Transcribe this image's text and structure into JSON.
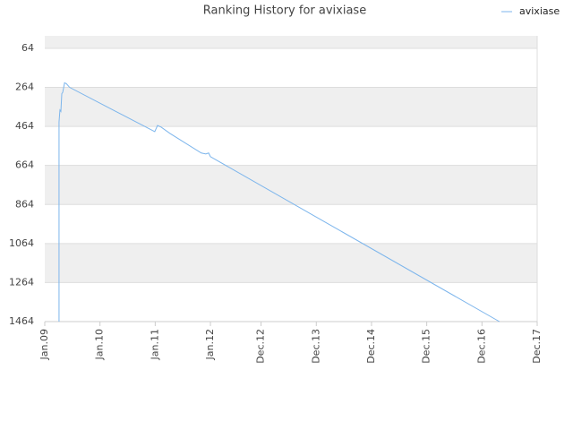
{
  "chart_data": {
    "type": "line",
    "title": "Ranking History for avixiase",
    "x": [
      3.1,
      3.1,
      3.3,
      3.5,
      3.7,
      3.9,
      4.3,
      4.7,
      5.4,
      23.9,
      24.5,
      25.3,
      27.2,
      34,
      35,
      35.6,
      36,
      98.8
    ],
    "series": [
      {
        "name": "avixiase",
        "color": "#7cb5ec",
        "values": [
          1464,
          441,
          380,
          387,
          296,
          290,
          241,
          245,
          264,
          491,
          459,
          468,
          500,
          600,
          605,
          600,
          619,
          1464
        ]
      }
    ],
    "xlim": [
      0,
      107
    ],
    "xticks": [
      {
        "value": 0,
        "label": "Jan.09"
      },
      {
        "value": 12,
        "label": "Jan.10"
      },
      {
        "value": 24,
        "label": "Jan.11"
      },
      {
        "value": 36,
        "label": "Jan.12"
      },
      {
        "value": 47,
        "label": "Dec.12"
      },
      {
        "value": 59,
        "label": "Dec.13"
      },
      {
        "value": 71,
        "label": "Dec.14"
      },
      {
        "value": 83,
        "label": "Dec.15"
      },
      {
        "value": 95,
        "label": "Dec.16"
      },
      {
        "value": 107,
        "label": "Dec.17"
      }
    ],
    "ylim": [
      1464,
      0
    ],
    "yticks": [
      64,
      264,
      464,
      664,
      864,
      1064,
      1264,
      1464
    ],
    "grid": true,
    "legend": "top-right"
  }
}
